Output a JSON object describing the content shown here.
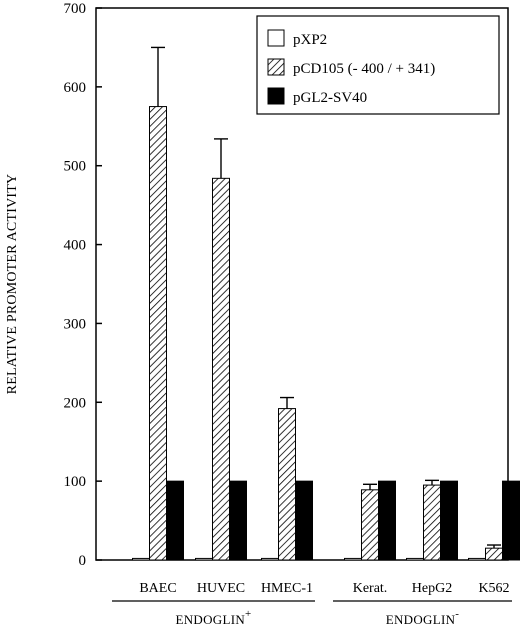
{
  "chart_data": {
    "type": "bar",
    "ylabel": "RELATIVE PROMOTER ACTIVITY",
    "ylim": [
      0,
      700
    ],
    "yticks": [
      0,
      100,
      200,
      300,
      400,
      500,
      600,
      700
    ],
    "categories": [
      "BAEC",
      "HUVEC",
      "HMEC-1",
      "Kerat.",
      "HepG2",
      "K562"
    ],
    "groups": [
      {
        "label": "ENDOGLIN",
        "sup": "+",
        "categories": [
          "BAEC",
          "HUVEC",
          "HMEC-1"
        ]
      },
      {
        "label": "ENDOGLIN",
        "sup": "-",
        "categories": [
          "Kerat.",
          "HepG2",
          "K562"
        ]
      }
    ],
    "series": [
      {
        "name": "pXP2",
        "fill": "white",
        "values": [
          2,
          2,
          2,
          2,
          2,
          2
        ],
        "errors": [
          0,
          0,
          0,
          0,
          0,
          0
        ]
      },
      {
        "name": "pCD105 (- 400 / + 341)",
        "fill": "hatched",
        "values": [
          575,
          484,
          192,
          89,
          95,
          15
        ],
        "errors": [
          75,
          50,
          14,
          7,
          6,
          4
        ]
      },
      {
        "name": "pGL2-SV40",
        "fill": "black",
        "values": [
          100,
          100,
          100,
          100,
          100,
          100
        ],
        "errors": [
          0,
          0,
          0,
          0,
          0,
          0
        ]
      }
    ],
    "legend_position": "top-right",
    "grid": false
  }
}
